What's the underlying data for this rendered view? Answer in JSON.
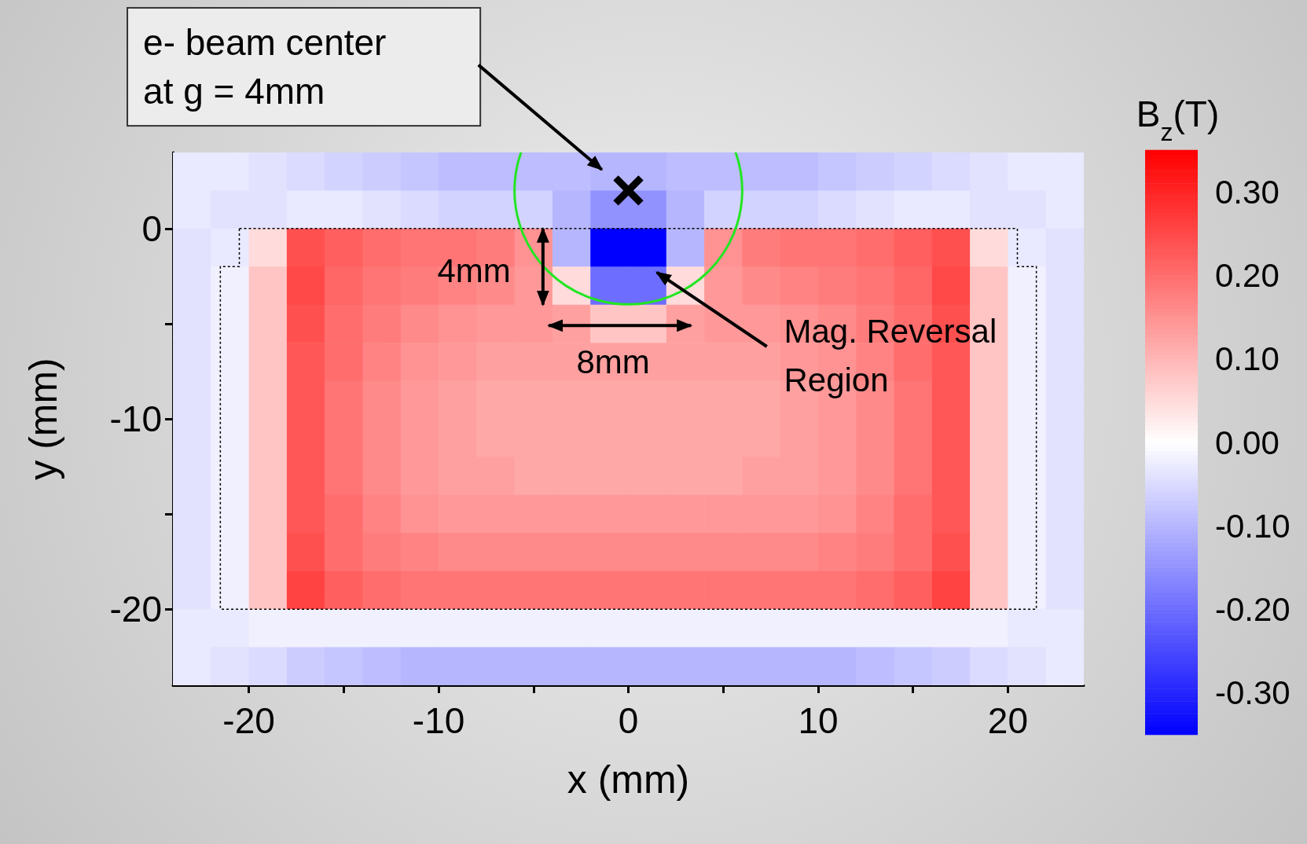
{
  "chart_data": {
    "type": "heatmap",
    "xlabel": "x (mm)",
    "ylabel": "y (mm)",
    "clabel": "B$_{z}$(T)",
    "x": [
      -23,
      -21,
      -19,
      -17,
      -15,
      -13,
      -11,
      -9,
      -7,
      -5,
      -3,
      -1,
      1,
      3,
      5,
      7,
      9,
      11,
      13,
      15,
      17,
      19,
      21,
      23
    ],
    "y": [
      3,
      1,
      -1,
      -3,
      -5,
      -7,
      -9,
      -11,
      -13,
      -15,
      -17,
      -19,
      -21,
      -23
    ],
    "xlim": [
      -24,
      24
    ],
    "xticks": [
      -20,
      {
        "value": -15,
        "label": null
      },
      -10,
      {
        "value": -5,
        "label": null
      },
      0,
      {
        "value": 5,
        "label": null
      },
      10,
      {
        "value": 15,
        "label": null
      },
      20
    ],
    "ylim": [
      -24,
      4
    ],
    "yticks": [
      -20,
      {
        "value": -15,
        "label": null
      },
      -10,
      {
        "value": -5,
        "label": null
      },
      0
    ],
    "clim": [
      -0.35,
      0.35
    ],
    "cticks": [
      {
        "value": 0.3,
        "label": "0.30"
      },
      {
        "value": 0.2,
        "label": "0.20"
      },
      {
        "value": 0.1,
        "label": "0.10"
      },
      {
        "value": 0,
        "label": "0.00"
      },
      {
        "value": -0.1,
        "label": "-0.10"
      },
      {
        "value": -0.2,
        "label": "-0.20"
      },
      {
        "value": -0.3,
        "label": "-0.30"
      }
    ],
    "cells": [
      [
        -0.03,
        -0.03,
        -0.04,
        -0.05,
        -0.06,
        -0.07,
        -0.08,
        -0.09,
        -0.09,
        -0.09,
        -0.09,
        -0.1,
        -0.1,
        -0.09,
        -0.09,
        -0.09,
        -0.09,
        -0.08,
        -0.07,
        -0.06,
        -0.05,
        -0.04,
        -0.03,
        -0.03
      ],
      [
        -0.03,
        -0.04,
        -0.04,
        -0.03,
        -0.03,
        -0.04,
        -0.05,
        -0.06,
        -0.06,
        -0.06,
        -0.1,
        -0.15,
        -0.15,
        -0.1,
        -0.06,
        -0.06,
        -0.06,
        -0.05,
        -0.04,
        -0.03,
        -0.03,
        -0.04,
        -0.04,
        -0.03
      ],
      [
        -0.04,
        -0.03,
        0.05,
        0.24,
        0.22,
        0.2,
        0.19,
        0.19,
        0.18,
        0.15,
        -0.1,
        -0.35,
        -0.35,
        -0.1,
        0.15,
        0.18,
        0.19,
        0.19,
        0.2,
        0.22,
        0.24,
        0.05,
        -0.03,
        -0.04
      ],
      [
        -0.04,
        -0.02,
        0.08,
        0.25,
        0.21,
        0.19,
        0.18,
        0.17,
        0.16,
        0.14,
        0.05,
        -0.2,
        -0.2,
        0.05,
        0.14,
        0.16,
        0.17,
        0.18,
        0.19,
        0.21,
        0.25,
        0.08,
        -0.02,
        -0.04
      ],
      [
        -0.04,
        -0.02,
        0.08,
        0.24,
        0.2,
        0.18,
        0.16,
        0.15,
        0.14,
        0.14,
        0.13,
        0.08,
        0.08,
        0.13,
        0.14,
        0.14,
        0.15,
        0.16,
        0.18,
        0.2,
        0.24,
        0.08,
        -0.02,
        -0.04
      ],
      [
        -0.04,
        -0.02,
        0.08,
        0.23,
        0.2,
        0.17,
        0.15,
        0.14,
        0.13,
        0.13,
        0.13,
        0.13,
        0.13,
        0.13,
        0.13,
        0.13,
        0.14,
        0.15,
        0.17,
        0.2,
        0.23,
        0.08,
        -0.02,
        -0.04
      ],
      [
        -0.04,
        -0.02,
        0.08,
        0.23,
        0.19,
        0.16,
        0.14,
        0.13,
        0.12,
        0.12,
        0.12,
        0.12,
        0.12,
        0.12,
        0.12,
        0.12,
        0.13,
        0.14,
        0.16,
        0.19,
        0.23,
        0.08,
        -0.02,
        -0.04
      ],
      [
        -0.04,
        -0.02,
        0.08,
        0.23,
        0.19,
        0.16,
        0.14,
        0.13,
        0.12,
        0.12,
        0.12,
        0.12,
        0.12,
        0.12,
        0.12,
        0.12,
        0.13,
        0.14,
        0.16,
        0.19,
        0.23,
        0.08,
        -0.02,
        -0.04
      ],
      [
        -0.04,
        -0.02,
        0.08,
        0.23,
        0.19,
        0.16,
        0.14,
        0.13,
        0.13,
        0.12,
        0.12,
        0.12,
        0.12,
        0.12,
        0.12,
        0.13,
        0.13,
        0.14,
        0.16,
        0.19,
        0.23,
        0.08,
        -0.02,
        -0.04
      ],
      [
        -0.04,
        -0.02,
        0.08,
        0.23,
        0.2,
        0.17,
        0.15,
        0.14,
        0.14,
        0.14,
        0.14,
        0.14,
        0.14,
        0.14,
        0.14,
        0.14,
        0.14,
        0.15,
        0.17,
        0.2,
        0.23,
        0.08,
        -0.02,
        -0.04
      ],
      [
        -0.04,
        -0.02,
        0.08,
        0.24,
        0.2,
        0.18,
        0.17,
        0.16,
        0.16,
        0.16,
        0.16,
        0.16,
        0.16,
        0.16,
        0.16,
        0.16,
        0.16,
        0.17,
        0.18,
        0.2,
        0.24,
        0.08,
        -0.02,
        -0.04
      ],
      [
        -0.04,
        -0.02,
        0.08,
        0.26,
        0.22,
        0.2,
        0.19,
        0.19,
        0.19,
        0.19,
        0.19,
        0.19,
        0.19,
        0.19,
        0.19,
        0.19,
        0.19,
        0.19,
        0.2,
        0.22,
        0.26,
        0.08,
        -0.02,
        -0.04
      ],
      [
        -0.03,
        -0.03,
        -0.02,
        -0.02,
        -0.02,
        -0.02,
        -0.02,
        -0.02,
        -0.02,
        -0.02,
        -0.02,
        -0.02,
        -0.02,
        -0.02,
        -0.02,
        -0.02,
        -0.02,
        -0.02,
        -0.02,
        -0.02,
        -0.02,
        -0.02,
        -0.03,
        -0.03
      ],
      [
        -0.03,
        -0.04,
        -0.05,
        -0.07,
        -0.08,
        -0.09,
        -0.1,
        -0.1,
        -0.1,
        -0.1,
        -0.1,
        -0.1,
        -0.1,
        -0.1,
        -0.1,
        -0.1,
        -0.1,
        -0.1,
        -0.09,
        -0.08,
        -0.07,
        -0.05,
        -0.04,
        -0.03
      ]
    ],
    "annotations": [
      "e- beam center\nat g = 4mm",
      "4mm",
      "8mm",
      "Mag. Reversal\nRegion"
    ]
  }
}
